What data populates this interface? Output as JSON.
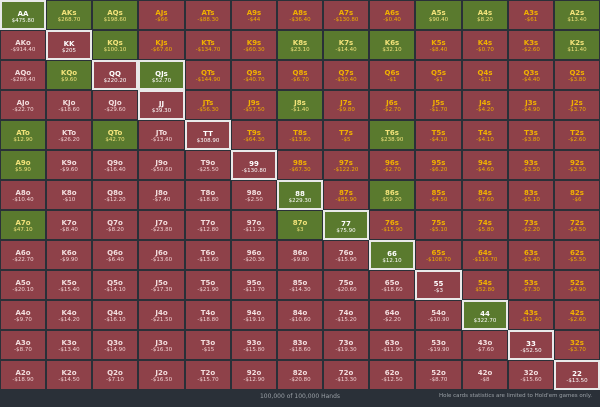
{
  "grid": {
    "rows": [
      [
        [
          "AA",
          "$475.80",
          "green",
          1
        ],
        [
          "AKs",
          "$268.70",
          "green",
          0
        ],
        [
          "AQs",
          "$198.60",
          "green",
          0
        ],
        [
          "AJs",
          "-$66",
          "red",
          0
        ],
        [
          "ATs",
          "-$88.30",
          "red",
          0
        ],
        [
          "A9s",
          "-$44",
          "red",
          0
        ],
        [
          "A8s",
          "-$36.40",
          "red",
          0
        ],
        [
          "A7s",
          "-$130.80",
          "red",
          0
        ],
        [
          "A6s",
          "-$0.40",
          "red",
          0
        ],
        [
          "A5s",
          "$90.40",
          "green",
          0
        ],
        [
          "A4s",
          "$8.20",
          "green",
          0
        ],
        [
          "A3s",
          "-$61",
          "red",
          0
        ],
        [
          "A2s",
          "$13.40",
          "green",
          0
        ]
      ],
      [
        [
          "AKo",
          "-$914.40",
          "red",
          0
        ],
        [
          "KK",
          "$205",
          "red",
          1
        ],
        [
          "KQs",
          "$100.10",
          "green",
          0
        ],
        [
          "KJs",
          "-$67.60",
          "red",
          0
        ],
        [
          "KTs",
          "-$134.70",
          "red",
          0
        ],
        [
          "K9s",
          "-$60.30",
          "red",
          0
        ],
        [
          "K8s",
          "$23.10",
          "green",
          0
        ],
        [
          "K7s",
          "-$14.40",
          "green",
          0
        ],
        [
          "K6s",
          "$32.10",
          "green",
          0
        ],
        [
          "K5s",
          "-$8.40",
          "red",
          0
        ],
        [
          "K4s",
          "-$0.70",
          "red",
          0
        ],
        [
          "K3s",
          "-$2.60",
          "red",
          0
        ],
        [
          "K2s",
          "$11.40",
          "green",
          0
        ]
      ],
      [
        [
          "AQo",
          "-$289.40",
          "red",
          0
        ],
        [
          "KQo",
          "$9.60",
          "green",
          0
        ],
        [
          "QQ",
          "$220.20",
          "red",
          1
        ],
        [
          "QJs",
          "$52.70",
          "green",
          1
        ],
        [
          "QTs",
          "-$144.90",
          "red",
          0
        ],
        [
          "Q9s",
          "-$40.70",
          "red",
          0
        ],
        [
          "Q8s",
          "-$6.70",
          "red",
          0
        ],
        [
          "Q7s",
          "-$30.40",
          "red",
          0
        ],
        [
          "Q6s",
          "-$1",
          "red",
          0
        ],
        [
          "Q5s",
          "-$1",
          "red",
          0
        ],
        [
          "Q4s",
          "-$11",
          "red",
          0
        ],
        [
          "Q3s",
          "-$4.40",
          "red",
          0
        ],
        [
          "Q2s",
          "-$3.80",
          "red",
          0
        ]
      ],
      [
        [
          "AJo",
          "-$22.70",
          "red",
          0
        ],
        [
          "KJo",
          "-$18.60",
          "red",
          0
        ],
        [
          "QJo",
          "-$29.60",
          "red",
          0
        ],
        [
          "JJ",
          "$39.30",
          "red",
          1
        ],
        [
          "JTs",
          "-$56.30",
          "red",
          0
        ],
        [
          "J9s",
          "-$57.50",
          "red",
          0
        ],
        [
          "J8s",
          "-$1.40",
          "green",
          0
        ],
        [
          "J7s",
          "-$9.80",
          "red",
          0
        ],
        [
          "J6s",
          "-$2.70",
          "red",
          0
        ],
        [
          "J5s",
          "-$1.70",
          "red",
          0
        ],
        [
          "J4s",
          "-$4.20",
          "red",
          0
        ],
        [
          "J3s",
          "-$4.90",
          "red",
          0
        ],
        [
          "J2s",
          "-$3.70",
          "red",
          0
        ]
      ],
      [
        [
          "ATo",
          "$12.90",
          "green",
          0
        ],
        [
          "KTo",
          "-$26.20",
          "red",
          0
        ],
        [
          "QTo",
          "$42.70",
          "green",
          0
        ],
        [
          "JTo",
          "-$13.40",
          "red",
          0
        ],
        [
          "TT",
          "$308.90",
          "red",
          1
        ],
        [
          "T9s",
          "-$64.30",
          "red",
          0
        ],
        [
          "T8s",
          "-$13.60",
          "red",
          0
        ],
        [
          "T7s",
          "-$5",
          "red",
          0
        ],
        [
          "T6s",
          "$238.90",
          "green",
          0
        ],
        [
          "T5s",
          "-$4.10",
          "red",
          0
        ],
        [
          "T4s",
          "-$4.10",
          "red",
          0
        ],
        [
          "T3s",
          "-$3.80",
          "red",
          0
        ],
        [
          "T2s",
          "-$2.60",
          "red",
          0
        ]
      ],
      [
        [
          "A9o",
          "$5.90",
          "green",
          0
        ],
        [
          "K9o",
          "-$9.60",
          "red",
          0
        ],
        [
          "Q9o",
          "-$16.40",
          "red",
          0
        ],
        [
          "J9o",
          "-$50.60",
          "red",
          0
        ],
        [
          "T9o",
          "-$25.50",
          "red",
          0
        ],
        [
          "99",
          "-$130.80",
          "red",
          1
        ],
        [
          "98s",
          "-$67.30",
          "red",
          0
        ],
        [
          "97s",
          "-$122.20",
          "red",
          0
        ],
        [
          "96s",
          "-$2.70",
          "red",
          0
        ],
        [
          "95s",
          "-$6.20",
          "red",
          0
        ],
        [
          "94s",
          "-$4.60",
          "red",
          0
        ],
        [
          "93s",
          "-$3.50",
          "red",
          0
        ],
        [
          "92s",
          "-$3.50",
          "red",
          0
        ]
      ],
      [
        [
          "A8o",
          "-$10.40",
          "red",
          0
        ],
        [
          "K8o",
          "-$10",
          "red",
          0
        ],
        [
          "Q8o",
          "-$12.20",
          "red",
          0
        ],
        [
          "J8o",
          "-$7.40",
          "red",
          0
        ],
        [
          "T8o",
          "-$18.80",
          "red",
          0
        ],
        [
          "98o",
          "-$2.50",
          "red",
          0
        ],
        [
          "88",
          "$229.30",
          "green",
          1
        ],
        [
          "87s",
          "-$85.90",
          "red",
          0
        ],
        [
          "86s",
          "$59.20",
          "green",
          0
        ],
        [
          "85s",
          "-$4.50",
          "red",
          0
        ],
        [
          "84s",
          "-$7.60",
          "red",
          0
        ],
        [
          "83s",
          "-$5.10",
          "red",
          0
        ],
        [
          "82s",
          "-$6",
          "red",
          0
        ]
      ],
      [
        [
          "A7o",
          "$47.10",
          "green",
          0
        ],
        [
          "K7o",
          "-$8.40",
          "red",
          0
        ],
        [
          "Q7o",
          "-$8.20",
          "red",
          0
        ],
        [
          "J7o",
          "-$23.80",
          "red",
          0
        ],
        [
          "T7o",
          "-$12.80",
          "red",
          0
        ],
        [
          "97o",
          "-$11.20",
          "red",
          0
        ],
        [
          "87o",
          "$3",
          "green",
          0
        ],
        [
          "77",
          "$75.90",
          "green",
          1
        ],
        [
          "76s",
          "-$15.90",
          "red",
          0
        ],
        [
          "75s",
          "-$5.10",
          "red",
          0
        ],
        [
          "74s",
          "-$5.80",
          "red",
          0
        ],
        [
          "73s",
          "-$2.20",
          "red",
          0
        ],
        [
          "72s",
          "-$4.50",
          "red",
          0
        ]
      ],
      [
        [
          "A6o",
          "-$22.70",
          "red",
          0
        ],
        [
          "K6o",
          "-$9.90",
          "red",
          0
        ],
        [
          "Q6o",
          "-$6.40",
          "red",
          0
        ],
        [
          "J6o",
          "-$13.60",
          "red",
          0
        ],
        [
          "T6o",
          "-$13.60",
          "red",
          0
        ],
        [
          "96o",
          "-$20.30",
          "red",
          0
        ],
        [
          "86o",
          "-$9.80",
          "red",
          0
        ],
        [
          "76o",
          "-$15.90",
          "red",
          0
        ],
        [
          "66",
          "$12.10",
          "green",
          1
        ],
        [
          "65s",
          "-$108.70",
          "red",
          0
        ],
        [
          "64s",
          "-$116.70",
          "red",
          0
        ],
        [
          "63s",
          "-$3.40",
          "red",
          0
        ],
        [
          "62s",
          "-$5.50",
          "red",
          0
        ]
      ],
      [
        [
          "A5o",
          "-$20.10",
          "red",
          0
        ],
        [
          "K5o",
          "-$15.40",
          "red",
          0
        ],
        [
          "Q5o",
          "-$14.10",
          "red",
          0
        ],
        [
          "J5o",
          "-$17.30",
          "red",
          0
        ],
        [
          "T5o",
          "-$21.90",
          "red",
          0
        ],
        [
          "95o",
          "-$11.70",
          "red",
          0
        ],
        [
          "85o",
          "-$14.30",
          "red",
          0
        ],
        [
          "75o",
          "-$20.60",
          "red",
          0
        ],
        [
          "65o",
          "-$18.60",
          "red",
          0
        ],
        [
          "55",
          "-$3",
          "red",
          1
        ],
        [
          "54s",
          "$52.80",
          "red",
          2
        ],
        [
          "53s",
          "-$7.30",
          "red",
          0
        ],
        [
          "52s",
          "-$4.90",
          "red",
          0
        ]
      ],
      [
        [
          "A4o",
          "-$9.70",
          "red",
          0
        ],
        [
          "K4o",
          "-$14.20",
          "red",
          0
        ],
        [
          "Q4o",
          "-$16.10",
          "red",
          0
        ],
        [
          "J4o",
          "-$21.50",
          "red",
          0
        ],
        [
          "T4o",
          "-$18.80",
          "red",
          0
        ],
        [
          "94o",
          "-$19.10",
          "red",
          0
        ],
        [
          "84o",
          "-$10.60",
          "red",
          0
        ],
        [
          "74o",
          "-$15.20",
          "red",
          0
        ],
        [
          "64o",
          "-$2.20",
          "red",
          0
        ],
        [
          "54o",
          "-$10.90",
          "red",
          0
        ],
        [
          "44",
          "$322.70",
          "green",
          1
        ],
        [
          "43s",
          "-$11.40",
          "red",
          0
        ],
        [
          "42s",
          "-$2.60",
          "red",
          0
        ]
      ],
      [
        [
          "A3o",
          "-$8.70",
          "red",
          0
        ],
        [
          "K3o",
          "-$13.40",
          "red",
          0
        ],
        [
          "Q3o",
          "-$14.90",
          "red",
          0
        ],
        [
          "J3o",
          "-$16.30",
          "red",
          0
        ],
        [
          "T3o",
          "-$15",
          "red",
          0
        ],
        [
          "93o",
          "-$15.80",
          "red",
          0
        ],
        [
          "83o",
          "-$18.60",
          "red",
          0
        ],
        [
          "73o",
          "-$19.30",
          "red",
          0
        ],
        [
          "63o",
          "-$11.90",
          "red",
          0
        ],
        [
          "53o",
          "-$19.90",
          "red",
          0
        ],
        [
          "43o",
          "-$7.60",
          "red",
          0
        ],
        [
          "33",
          "-$52.50",
          "red",
          1
        ],
        [
          "32s",
          "-$3.70",
          "red",
          0
        ]
      ],
      [
        [
          "A2o",
          "-$18.90",
          "red",
          0
        ],
        [
          "K2o",
          "-$14.50",
          "red",
          0
        ],
        [
          "Q2o",
          "-$7.10",
          "red",
          0
        ],
        [
          "J2o",
          "-$16.50",
          "red",
          0
        ],
        [
          "T2o",
          "-$15.70",
          "red",
          0
        ],
        [
          "92o",
          "-$12.90",
          "red",
          0
        ],
        [
          "82o",
          "-$20.80",
          "red",
          0
        ],
        [
          "72o",
          "-$13.30",
          "red",
          0
        ],
        [
          "62o",
          "-$12.50",
          "red",
          0
        ],
        [
          "52o",
          "-$8.70",
          "red",
          0
        ],
        [
          "42o",
          "-$8",
          "red",
          0
        ],
        [
          "32o",
          "-$15.60",
          "red",
          0
        ],
        [
          "22",
          "-$13.50",
          "red",
          1
        ]
      ]
    ]
  },
  "footer": {
    "hands_label": "100,000 of 100,000 Hands",
    "note": "Hole cards statistics are limited to Hold'em games only."
  }
}
